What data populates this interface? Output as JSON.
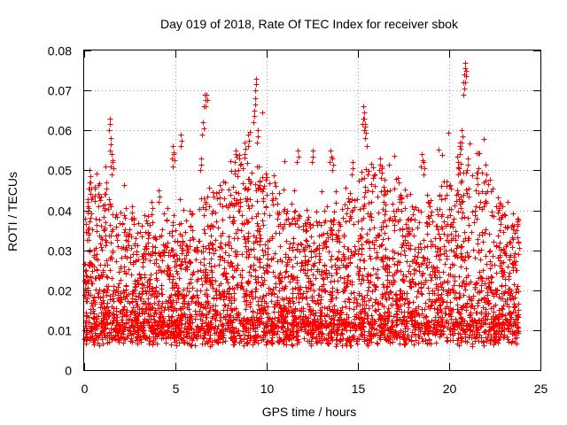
{
  "chart_data": {
    "type": "scatter",
    "title": "Day 019 of 2018, Rate Of TEC Index for receiver sbok",
    "xlabel": "GPS time / hours",
    "ylabel": "ROTI / TECUs",
    "xlim": [
      0,
      25
    ],
    "ylim": [
      0,
      0.08
    ],
    "xticks": [
      0,
      5,
      10,
      15,
      20,
      25
    ],
    "xtick_labels": [
      "0",
      "5",
      "10",
      "15",
      "20",
      "25"
    ],
    "yticks": [
      0,
      0.01,
      0.02,
      0.03,
      0.04,
      0.05,
      0.06,
      0.07,
      0.08
    ],
    "ytick_labels": [
      "0",
      "0.01",
      "0.02",
      "0.03",
      "0.04",
      "0.05",
      "0.06",
      "0.07",
      "0.08"
    ],
    "grid": true,
    "marker": "+",
    "color": "#ff0000",
    "data_range_hours": [
      0,
      23.8
    ],
    "series": [
      {
        "name": "ROTI",
        "description_of_density": "dense band mostly between 0.005 and 0.03 TECU/s from 0 to 23.8 h",
        "points": [
          [
            0.1,
            0.025
          ],
          [
            0.3,
            0.05
          ],
          [
            0.35,
            0.047
          ],
          [
            1.2,
            0.047
          ],
          [
            1.4,
            0.063
          ],
          [
            1.45,
            0.058
          ],
          [
            1.5,
            0.054
          ],
          [
            1.55,
            0.052
          ],
          [
            2.6,
            0.041
          ],
          [
            3.7,
            0.042
          ],
          [
            4.1,
            0.045
          ],
          [
            4.85,
            0.056
          ],
          [
            4.9,
            0.054
          ],
          [
            5.3,
            0.059
          ],
          [
            6.5,
            0.062
          ],
          [
            6.6,
            0.069
          ],
          [
            6.7,
            0.069
          ],
          [
            6.4,
            0.053
          ],
          [
            8.3,
            0.055
          ],
          [
            8.5,
            0.053
          ],
          [
            8.8,
            0.057
          ],
          [
            9.0,
            0.059
          ],
          [
            9.3,
            0.065
          ],
          [
            9.35,
            0.068
          ],
          [
            9.4,
            0.073
          ],
          [
            9.5,
            0.06
          ],
          [
            11.7,
            0.055
          ],
          [
            12.5,
            0.055
          ],
          [
            13.5,
            0.055
          ],
          [
            13.6,
            0.053
          ],
          [
            14.7,
            0.052
          ],
          [
            15.3,
            0.066
          ],
          [
            15.35,
            0.063
          ],
          [
            15.4,
            0.061
          ],
          [
            16.2,
            0.053
          ],
          [
            16.3,
            0.051
          ],
          [
            18.5,
            0.054
          ],
          [
            18.6,
            0.052
          ],
          [
            20.5,
            0.052
          ],
          [
            20.6,
            0.057
          ],
          [
            20.7,
            0.06
          ],
          [
            20.8,
            0.072
          ],
          [
            20.85,
            0.077
          ],
          [
            20.9,
            0.075
          ],
          [
            21.0,
            0.053
          ],
          [
            21.5,
            0.048
          ],
          [
            22.8,
            0.038
          ],
          [
            23.8,
            0.032
          ]
        ]
      }
    ]
  }
}
